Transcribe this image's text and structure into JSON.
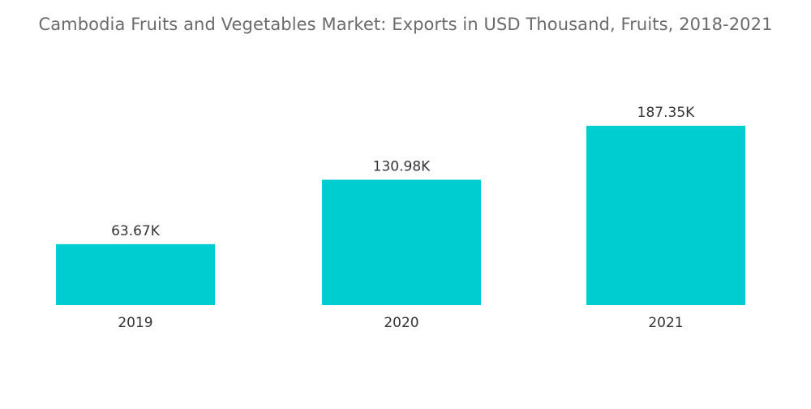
{
  "chart_data": {
    "type": "bar",
    "title": "Cambodia Fruits and Vegetables Market: Exports in USD Thousand, Fruits, 2018-2021",
    "categories": [
      "2019",
      "2020",
      "2021"
    ],
    "values": [
      63.67,
      130.98,
      187.35
    ],
    "value_labels": [
      "63.67K",
      "130.98K",
      "187.35K"
    ],
    "xlabel": "",
    "ylabel": "",
    "ylim": [
      0,
      200
    ],
    "grid": false,
    "legend": "none",
    "bar_color": "#00cdd0"
  }
}
